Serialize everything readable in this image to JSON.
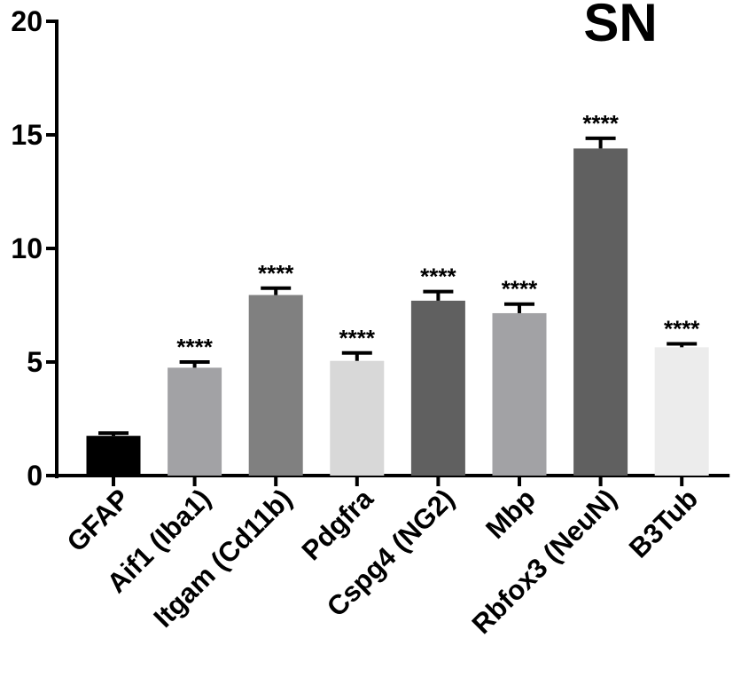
{
  "chart_data": {
    "type": "bar",
    "title": "SN",
    "xlabel": "",
    "ylabel": "",
    "ylim": [
      0,
      20
    ],
    "yticks": [
      "0",
      "5",
      "10",
      "15",
      "20"
    ],
    "grid": false,
    "categories": [
      "GFAP",
      "Aif1 (Iba1)",
      "Itgam (Cd11b)",
      "Pdgfra",
      "Cspg4 (NG2)",
      "Mbp",
      "Rbfox3 (NeuN)",
      "B3Tub"
    ],
    "values": [
      1.75,
      4.75,
      7.95,
      5.05,
      7.7,
      7.15,
      14.4,
      5.65
    ],
    "errors": [
      0.12,
      0.25,
      0.3,
      0.35,
      0.4,
      0.4,
      0.45,
      0.15
    ],
    "significance": [
      "",
      "****",
      "****",
      "****",
      "****",
      "****",
      "****",
      "****"
    ],
    "colors": [
      "#000000",
      "#a2a2a5",
      "#808080",
      "#d8d8d8",
      "#606060",
      "#a2a2a5",
      "#606060",
      "#ececec"
    ]
  }
}
